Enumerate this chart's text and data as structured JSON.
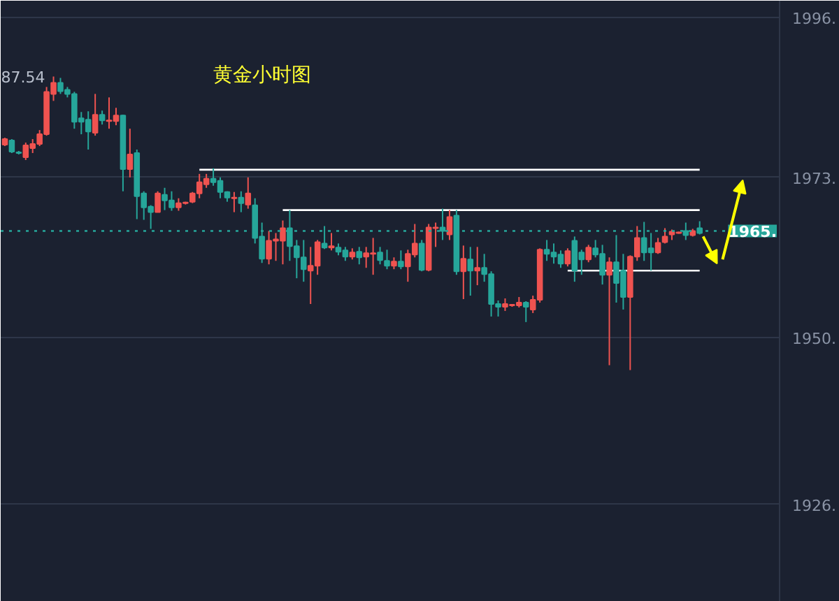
{
  "chart_data": {
    "type": "candlestick",
    "title": "黄金小时图",
    "categories": [
      null,
      null,
      null,
      null,
      null,
      null,
      null,
      null,
      null,
      null,
      null,
      null,
      null,
      null,
      null,
      null,
      null,
      null,
      null,
      null,
      null,
      null,
      null,
      null,
      null,
      null,
      null,
      null,
      null,
      null,
      null,
      null,
      null,
      null,
      null,
      null,
      null,
      null,
      null,
      null,
      null,
      null,
      null,
      null,
      null,
      null,
      null,
      null,
      null,
      null,
      null,
      null,
      null,
      null,
      null,
      null,
      null,
      null,
      null,
      null,
      null,
      null,
      null,
      null,
      null,
      null,
      null,
      null,
      null,
      null,
      null,
      null,
      null,
      null,
      null,
      null,
      null,
      null,
      null,
      null,
      null,
      null,
      null,
      null,
      null,
      null,
      null,
      null,
      null,
      null,
      null,
      null,
      null,
      null,
      null,
      null,
      null,
      null,
      null,
      null,
      null
    ],
    "ohlc": [
      [
        1977.7,
        1978.7,
        1977.5,
        1978.5
      ],
      [
        1978.3,
        1978.5,
        1976.5,
        1976.7
      ],
      [
        1976.6,
        1976.8,
        1976.3,
        1976.5
      ],
      [
        1975.9,
        1978.0,
        1975.5,
        1977.6
      ],
      [
        1977.2,
        1978.5,
        1976.5,
        1977.8
      ],
      [
        1977.8,
        1979.8,
        1977.5,
        1979.2
      ],
      [
        1979.2,
        1986.0,
        1979.0,
        1985.3
      ],
      [
        1985.0,
        1987.5,
        1984.0,
        1986.6
      ],
      [
        1986.6,
        1987.3,
        1985.0,
        1985.4
      ],
      [
        1985.6,
        1986.0,
        1984.5,
        1985.0
      ],
      [
        1985.0,
        1985.3,
        1980.0,
        1981.0
      ],
      [
        1981.5,
        1982.4,
        1979.2,
        1981.0
      ],
      [
        1981.3,
        1982.5,
        1977.0,
        1979.6
      ],
      [
        1979.4,
        1985.0,
        1979.0,
        1982.0
      ],
      [
        1982.0,
        1982.6,
        1980.6,
        1981.2
      ],
      [
        1981.1,
        1984.5,
        1980.0,
        1981.2
      ],
      [
        1981.1,
        1983.0,
        1980.5,
        1981.9
      ],
      [
        1981.9,
        1982.0,
        1971.0,
        1974.2
      ],
      [
        1974.2,
        1980.0,
        1973.0,
        1976.3
      ],
      [
        1976.5,
        1977.0,
        1967.0,
        1970.3
      ],
      [
        1970.7,
        1971.0,
        1966.9,
        1968.7
      ],
      [
        1968.8,
        1969.0,
        1965.6,
        1968.0
      ],
      [
        1968.0,
        1971.0,
        1968.0,
        1970.7
      ],
      [
        1970.5,
        1971.5,
        1968.3,
        1969.7
      ],
      [
        1969.7,
        1971.0,
        1968.2,
        1968.7
      ],
      [
        1968.7,
        1970.0,
        1968.2,
        1969.3
      ],
      [
        1969.3,
        1969.5,
        1969.1,
        1969.4
      ],
      [
        1969.5,
        1970.9,
        1969.3,
        1970.7
      ],
      [
        1970.7,
        1973.5,
        1970.0,
        1972.3
      ],
      [
        1972.0,
        1973.5,
        1971.5,
        1972.8
      ],
      [
        1972.8,
        1974.3,
        1971.8,
        1972.3
      ],
      [
        1972.5,
        1973.0,
        1970.0,
        1970.9
      ],
      [
        1970.9,
        1971.0,
        1969.5,
        1970.1
      ],
      [
        1970.0,
        1970.9,
        1968.0,
        1970.1
      ],
      [
        1970.1,
        1971.0,
        1968.0,
        1969.3
      ],
      [
        1969.1,
        1973.0,
        1968.5,
        1970.7
      ],
      [
        1969.0,
        1970.0,
        1963.5,
        1964.3
      ],
      [
        1964.5,
        1966.5,
        1960.7,
        1961.3
      ],
      [
        1961.3,
        1965.3,
        1960.5,
        1963.9
      ],
      [
        1963.9,
        1965.0,
        1961.0,
        1964.1
      ],
      [
        1963.9,
        1966.8,
        1960.5,
        1965.7
      ],
      [
        1965.7,
        1968.3,
        1961.0,
        1963.1
      ],
      [
        1963.1,
        1964.0,
        1958.5,
        1961.5
      ],
      [
        1961.5,
        1964.0,
        1958.0,
        1959.8
      ],
      [
        1959.6,
        1963.0,
        1954.8,
        1960.3
      ],
      [
        1960.3,
        1964.0,
        1959.0,
        1963.7
      ],
      [
        1963.5,
        1966.0,
        1962.7,
        1962.9
      ],
      [
        1962.9,
        1965.0,
        1962.5,
        1963.1
      ],
      [
        1962.9,
        1963.5,
        1961.8,
        1962.3
      ],
      [
        1962.5,
        1963.0,
        1961.0,
        1961.6
      ],
      [
        1961.6,
        1962.8,
        1961.2,
        1962.2
      ],
      [
        1962.3,
        1963.0,
        1960.5,
        1961.5
      ],
      [
        1961.6,
        1963.0,
        1960.0,
        1962.1
      ],
      [
        1962.0,
        1964.3,
        1959.0,
        1962.1
      ],
      [
        1962.2,
        1963.0,
        1960.5,
        1961.1
      ],
      [
        1961.0,
        1962.6,
        1959.8,
        1960.3
      ],
      [
        1960.3,
        1961.5,
        1959.8,
        1960.9
      ],
      [
        1960.9,
        1962.5,
        1959.8,
        1960.2
      ],
      [
        1960.2,
        1962.6,
        1958.0,
        1962.0
      ],
      [
        1961.9,
        1966.3,
        1961.5,
        1963.5
      ],
      [
        1963.5,
        1964.0,
        1959.5,
        1959.7
      ],
      [
        1959.7,
        1966.3,
        1959.5,
        1965.8
      ],
      [
        1965.7,
        1966.5,
        1963.0,
        1965.8
      ],
      [
        1965.8,
        1968.5,
        1964.0,
        1965.3
      ],
      [
        1964.8,
        1968.3,
        1964.0,
        1967.3
      ],
      [
        1967.5,
        1968.3,
        1959.0,
        1959.5
      ],
      [
        1959.5,
        1963.2,
        1955.5,
        1961.3
      ],
      [
        1961.2,
        1963.0,
        1956.0,
        1959.6
      ],
      [
        1959.6,
        1963.0,
        1957.5,
        1960.0
      ],
      [
        1960.0,
        1962.0,
        1958.0,
        1959.1
      ],
      [
        1959.1,
        1959.5,
        1953.0,
        1954.8
      ],
      [
        1954.8,
        1955.3,
        1953.0,
        1954.4
      ],
      [
        1954.4,
        1955.6,
        1953.8,
        1954.8
      ],
      [
        1954.6,
        1954.8,
        1954.4,
        1954.7
      ],
      [
        1954.6,
        1955.8,
        1954.3,
        1955.0
      ],
      [
        1955.0,
        1955.2,
        1952.2,
        1954.4
      ],
      [
        1954.0,
        1956.0,
        1953.5,
        1955.4
      ],
      [
        1955.4,
        1962.8,
        1955.0,
        1962.6
      ],
      [
        1962.6,
        1964.0,
        1961.0,
        1962.0
      ],
      [
        1962.2,
        1963.5,
        1960.6,
        1961.6
      ],
      [
        1961.9,
        1962.5,
        1960.0,
        1960.6
      ],
      [
        1960.6,
        1962.8,
        1960.2,
        1962.4
      ],
      [
        1963.9,
        1964.5,
        1958.0,
        1959.6
      ],
      [
        1962.2,
        1962.6,
        1959.0,
        1961.2
      ],
      [
        1961.2,
        1963.3,
        1960.8,
        1962.9
      ],
      [
        1962.8,
        1964.0,
        1961.5,
        1961.9
      ],
      [
        1962.0,
        1963.3,
        1957.6,
        1959.0
      ],
      [
        1959.0,
        1961.5,
        1946.0,
        1960.8
      ],
      [
        1960.8,
        1964.7,
        1955.0,
        1957.8
      ],
      [
        1959.6,
        1962.0,
        1954.0,
        1955.8
      ],
      [
        1955.8,
        1961.8,
        1945.3,
        1961.6
      ],
      [
        1961.6,
        1966.0,
        1961.0,
        1964.3
      ],
      [
        1964.3,
        1966.6,
        1961.0,
        1962.2
      ],
      [
        1962.8,
        1965.0,
        1959.6,
        1962.2
      ],
      [
        1962.2,
        1964.3,
        1962.0,
        1963.6
      ],
      [
        1963.7,
        1965.7,
        1963.5,
        1964.5
      ],
      [
        1964.8,
        1965.5,
        1964.0,
        1965.2
      ],
      [
        1965.0,
        1965.2,
        1964.9,
        1965.1
      ],
      [
        1965.3,
        1966.5,
        1964.0,
        1964.7
      ],
      [
        1964.7,
        1965.6,
        1964.5,
        1965.3
      ],
      [
        1965.7,
        1966.7,
        1964.8,
        1965.0
      ]
    ],
    "colors": [
      "#ef5350",
      "#26a69a",
      "#26a69a",
      "#ef5350",
      "#ef5350",
      "#ef5350",
      "#ef5350",
      "#ef5350",
      "#26a69a",
      "#26a69a",
      "#26a69a",
      "#26a69a",
      "#26a69a",
      "#ef5350",
      "#26a69a",
      "#ef5350",
      "#ef5350",
      "#26a69a",
      "#ef5350",
      "#26a69a",
      "#26a69a",
      "#26a69a",
      "#ef5350",
      "#26a69a",
      "#26a69a",
      "#ef5350",
      "#ef5350",
      "#ef5350",
      "#ef5350",
      "#ef5350",
      "#26a69a",
      "#26a69a",
      "#26a69a",
      "#ef5350",
      "#26a69a",
      "#ef5350",
      "#26a69a",
      "#26a69a",
      "#ef5350",
      "#ef5350",
      "#ef5350",
      "#26a69a",
      "#26a69a",
      "#26a69a",
      "#ef5350",
      "#ef5350",
      "#26a69a",
      "#ef5350",
      "#26a69a",
      "#26a69a",
      "#ef5350",
      "#26a69a",
      "#ef5350",
      "#ef5350",
      "#26a69a",
      "#26a69a",
      "#ef5350",
      "#26a69a",
      "#ef5350",
      "#ef5350",
      "#26a69a",
      "#ef5350",
      "#ef5350",
      "#26a69a",
      "#ef5350",
      "#26a69a",
      "#ef5350",
      "#26a69a",
      "#ef5350",
      "#26a69a",
      "#26a69a",
      "#26a69a",
      "#ef5350",
      "#ef5350",
      "#ef5350",
      "#26a69a",
      "#ef5350",
      "#ef5350",
      "#26a69a",
      "#26a69a",
      "#26a69a",
      "#ef5350",
      "#26a69a",
      "#26a69a",
      "#ef5350",
      "#26a69a",
      "#26a69a",
      "#ef5350",
      "#26a69a",
      "#26a69a",
      "#ef5350",
      "#ef5350",
      "#26a69a",
      "#26a69a",
      "#ef5350",
      "#ef5350",
      "#ef5350",
      "#ef5350",
      "#26a69a",
      "#ef5350",
      "#26a69a"
    ],
    "series": [
      {
        "type": "line",
        "color": "#ffffff",
        "values": [
          null,
          null,
          null,
          null,
          null,
          null,
          null,
          null,
          null,
          null,
          null,
          null,
          null,
          null,
          null,
          null,
          null,
          null,
          null,
          null,
          null,
          null,
          null,
          null,
          null,
          null,
          null,
          null,
          1974.1,
          1974.1,
          1974.1,
          1974.1,
          1974.1,
          1974.1,
          1974.1,
          1974.1,
          1974.1,
          1974.1,
          1974.1,
          1974.1,
          1974.1,
          1974.1,
          1974.1,
          1974.1,
          1974.1,
          1974.1,
          1974.1,
          1974.1,
          1974.1,
          1974.1,
          1974.1,
          1974.1,
          1974.1,
          1974.1,
          1974.1,
          1974.1,
          1974.1,
          1974.1,
          1974.1,
          1974.1,
          1974.1,
          1974.1,
          1974.1,
          1974.1,
          1974.1,
          1974.1,
          1974.1,
          1974.1,
          1974.1,
          1974.1,
          1974.1,
          1974.1,
          1974.1,
          1974.1,
          1974.1,
          1974.1,
          1974.1,
          1974.1,
          1974.1,
          1974.1,
          1974.1,
          1974.1,
          1974.1,
          1974.1,
          1974.1,
          1974.1,
          1974.1,
          1974.1,
          1974.1,
          1974.1,
          1974.1,
          1974.1,
          1974.1,
          1974.1,
          1974.1,
          1974.1,
          1974.1,
          1974.1,
          1974.1,
          1974.1,
          1974.1
        ]
      },
      {
        "type": "line",
        "color": "#ffffff",
        "values": [
          null,
          null,
          null,
          null,
          null,
          null,
          null,
          null,
          null,
          null,
          null,
          null,
          null,
          null,
          null,
          null,
          null,
          null,
          null,
          null,
          null,
          null,
          null,
          null,
          null,
          null,
          null,
          null,
          null,
          null,
          null,
          null,
          null,
          null,
          null,
          null,
          null,
          null,
          null,
          null,
          1968.3,
          1968.3,
          1968.3,
          1968.3,
          1968.3,
          1968.3,
          1968.3,
          1968.3,
          1968.3,
          1968.3,
          1968.3,
          1968.3,
          1968.3,
          1968.3,
          1968.3,
          1968.3,
          1968.3,
          1968.3,
          1968.3,
          1968.3,
          1968.3,
          1968.3,
          1968.3,
          1968.3,
          1968.3,
          1968.3,
          1968.3,
          1968.3,
          1968.3,
          1968.3,
          1968.3,
          1968.3,
          1968.3,
          1968.3,
          1968.3,
          1968.3,
          1968.3,
          1968.3,
          1968.3,
          1968.3,
          1968.3,
          1968.3,
          1968.3,
          1968.3,
          1968.3,
          1968.3,
          1968.3,
          1968.3,
          1968.3,
          1968.3,
          1968.3,
          1968.3,
          1968.3,
          1968.3,
          1968.3,
          1968.3,
          1968.3,
          1968.3,
          1968.3,
          1968.3,
          1968.3
        ]
      },
      {
        "type": "line",
        "color": "#ffffff",
        "values": [
          null,
          null,
          null,
          null,
          null,
          null,
          null,
          null,
          null,
          null,
          null,
          null,
          null,
          null,
          null,
          null,
          null,
          null,
          null,
          null,
          null,
          null,
          null,
          null,
          null,
          null,
          null,
          null,
          null,
          null,
          null,
          null,
          null,
          null,
          null,
          null,
          null,
          null,
          null,
          null,
          null,
          null,
          null,
          null,
          null,
          null,
          null,
          null,
          null,
          null,
          null,
          null,
          null,
          null,
          null,
          null,
          null,
          null,
          null,
          null,
          null,
          null,
          null,
          null,
          null,
          null,
          null,
          null,
          null,
          null,
          null,
          null,
          null,
          null,
          null,
          null,
          null,
          null,
          null,
          null,
          null,
          1959.6,
          1959.6,
          1959.6,
          1959.6,
          1959.6,
          1959.6,
          1959.6,
          1959.6,
          1959.6,
          1959.6,
          1959.6,
          1959.6,
          1959.6,
          1959.6,
          1959.6,
          1959.6,
          1959.6,
          1959.6,
          1959.6,
          1959.6
        ]
      }
    ],
    "ref_lines": [
      {
        "axis": "y",
        "value": 1965.3,
        "label": "1965.",
        "color": "#26a69a",
        "line_style": "dotted"
      }
    ],
    "annotations": [
      "87.54"
    ],
    "ylim": [
      1912.0,
      1998.4
    ],
    "yticks": [
      {
        "value": 1996,
        "label": "1996."
      },
      {
        "value": 1973,
        "label": "1973."
      },
      {
        "value": 1950,
        "label": "1950."
      },
      {
        "value": 1926,
        "label": "1926."
      }
    ],
    "grid": "y",
    "tick_labels": "y"
  }
}
